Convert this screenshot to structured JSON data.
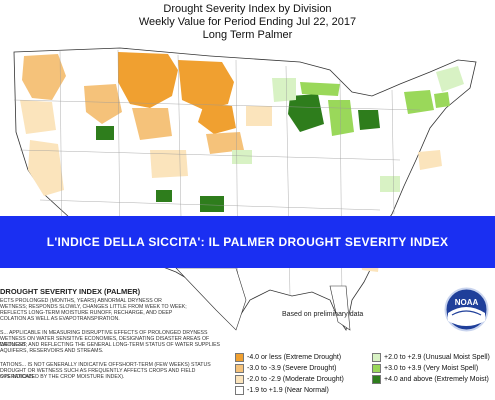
{
  "titles": {
    "line1": "Drought Severity Index by Division",
    "line2": "Weekly Value for Period Ending Jul 22, 2017",
    "line3": "Long Term Palmer"
  },
  "banner": {
    "text": "L'INDICE DELLA SICCITA': IL PALMER DROUGHT SEVERITY INDEX"
  },
  "legend": {
    "heading": "DROUGHT SEVERITY INDEX (PALMER)",
    "notes": [
      "ECTS PROLONGED (MONTHS, YEARS) ABNORMAL DRYNESS OR",
      "WETNESS; RESPONDS SLOWLY, CHANGES LITTLE FROM WEEK TO WEEK;",
      "REFLECTS LONG-TERM MOISTURE RUNOFF, RECHARGE, AND DEEP",
      "COLATION AS WELL AS EVAPOTRANSPIRATION.",
      "S... APPLICABLE IN MEASURING DISRUPTIVE EFFECTS OF PROLONGED DRYNESS",
      "WETNESS ON WATER SENSITIVE ECONOMIES, DESIGNATING DISASTER AREAS OF DROUGHT",
      "WETNESS; AND REFLECTING THE GENERAL LONG-TERM STATUS OF WATER SUPPLIES",
      "AQUIFERS, RESERVOIRS AND STREAMS.",
      "TATIONS... IS NOT GENERALLY INDICATIVE OFFSHORT-TERM (FEW WEEKS) STATUS",
      "DROUGHT OR WETNESS SUCH AS FREQUENTLY AFFECTS CROPS AND FIELD OPERATIONS",
      "S IS INDICATED BY THE CROP MOISTURE INDEX)."
    ],
    "preliminary": "Based on preliminary data",
    "items": [
      {
        "label": "-4.0 or less (Extreme Drought)",
        "color": "#f0a030"
      },
      {
        "label": "-3.0 to -3.9 (Severe Drought)",
        "color": "#f5c27a"
      },
      {
        "label": "-2.0 to -2.9 (Moderate Drought)",
        "color": "#fbe4bc"
      },
      {
        "label": "-1.9 to +1.9 (Near Normal)",
        "color": "#ffffff"
      },
      {
        "label": "+2.0 to +2.9 (Unusual Moist Spell)",
        "color": "#d8f2c4"
      },
      {
        "label": "+3.0 to +3.9 (Very Moist Spell)",
        "color": "#9ad85a"
      },
      {
        "label": "+4.0 and above (Extremely Moist)",
        "color": "#2e7d1c"
      }
    ]
  },
  "logo": {
    "text": "NOAA"
  }
}
